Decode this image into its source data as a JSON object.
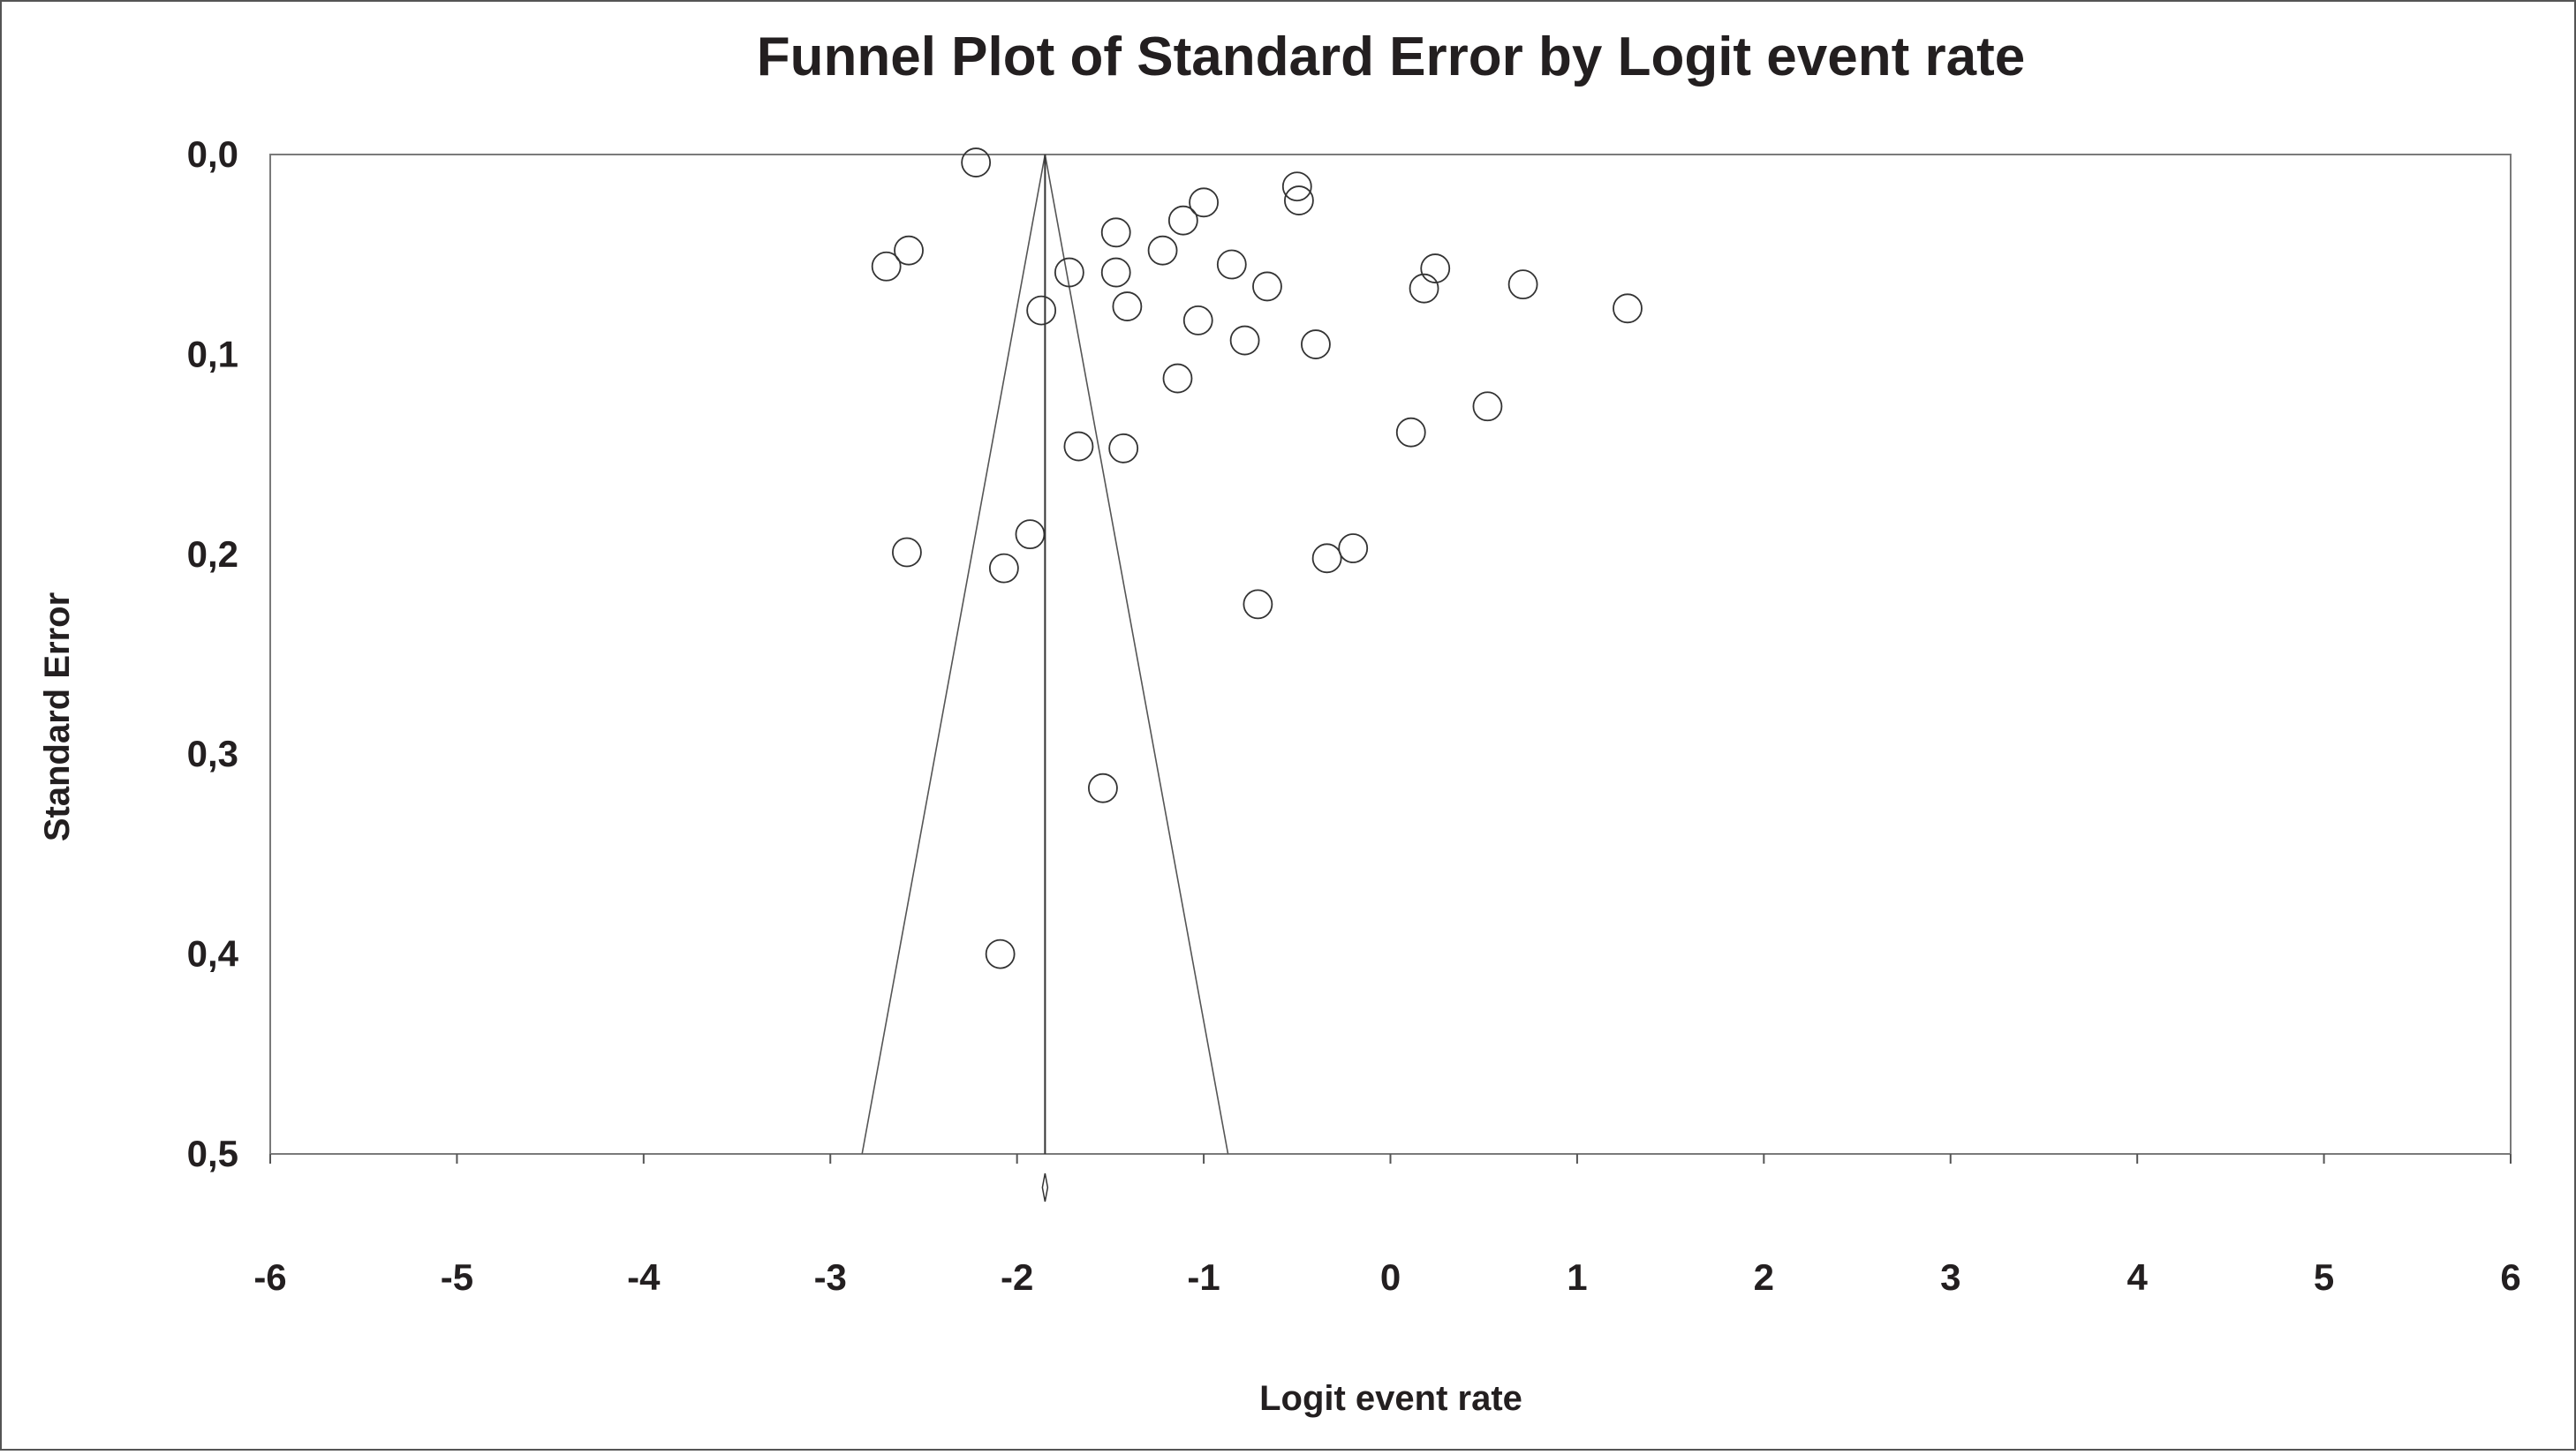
{
  "chart_data": {
    "type": "scatter",
    "title": "Funnel Plot of Standard Error by Logit event rate",
    "xlabel": "Logit event rate",
    "ylabel": "Standard Error",
    "xlim": [
      -6,
      6
    ],
    "ylim": [
      0.0,
      0.5
    ],
    "y_inverted": true,
    "x_ticks": [
      -6,
      -5,
      -4,
      -3,
      -2,
      -1,
      0,
      1,
      2,
      3,
      4,
      5,
      6
    ],
    "x_tick_labels": [
      "-6",
      "-5",
      "-4",
      "-3",
      "-2",
      "-1",
      "0",
      "1",
      "2",
      "3",
      "4",
      "5",
      "6"
    ],
    "y_ticks": [
      0.0,
      0.1,
      0.2,
      0.3,
      0.4,
      0.5
    ],
    "y_tick_labels": [
      "0,0",
      "0,1",
      "0,2",
      "0,3",
      "0,4",
      "0,5"
    ],
    "grid": false,
    "marker": "open-circle",
    "summary_estimate": -1.85,
    "funnel": {
      "apex": [
        -1.85,
        0.0
      ],
      "base_left": [
        -2.83,
        0.5
      ],
      "base_right": [
        -0.87,
        0.5
      ]
    },
    "points": [
      {
        "x": -2.22,
        "y": 0.004
      },
      {
        "x": -2.7,
        "y": 0.056
      },
      {
        "x": -2.58,
        "y": 0.048
      },
      {
        "x": -1.87,
        "y": 0.078
      },
      {
        "x": -1.72,
        "y": 0.059
      },
      {
        "x": -1.47,
        "y": 0.039
      },
      {
        "x": -1.47,
        "y": 0.059
      },
      {
        "x": -1.41,
        "y": 0.076
      },
      {
        "x": -1.22,
        "y": 0.048
      },
      {
        "x": -1.11,
        "y": 0.033
      },
      {
        "x": -1.0,
        "y": 0.024
      },
      {
        "x": -1.03,
        "y": 0.083
      },
      {
        "x": -0.85,
        "y": 0.055
      },
      {
        "x": -0.66,
        "y": 0.066
      },
      {
        "x": -0.78,
        "y": 0.093
      },
      {
        "x": -0.5,
        "y": 0.016
      },
      {
        "x": -0.49,
        "y": 0.023
      },
      {
        "x": -0.4,
        "y": 0.095
      },
      {
        "x": -1.14,
        "y": 0.112
      },
      {
        "x": 0.18,
        "y": 0.067
      },
      {
        "x": 0.24,
        "y": 0.057
      },
      {
        "x": 0.71,
        "y": 0.065
      },
      {
        "x": 1.27,
        "y": 0.077
      },
      {
        "x": 0.52,
        "y": 0.126
      },
      {
        "x": 0.11,
        "y": 0.139
      },
      {
        "x": -1.67,
        "y": 0.146
      },
      {
        "x": -1.43,
        "y": 0.147
      },
      {
        "x": -2.59,
        "y": 0.199
      },
      {
        "x": -1.93,
        "y": 0.19
      },
      {
        "x": -2.07,
        "y": 0.207
      },
      {
        "x": -0.2,
        "y": 0.197
      },
      {
        "x": -0.34,
        "y": 0.202
      },
      {
        "x": -0.71,
        "y": 0.225
      },
      {
        "x": -1.54,
        "y": 0.317
      },
      {
        "x": -2.09,
        "y": 0.4
      }
    ]
  }
}
